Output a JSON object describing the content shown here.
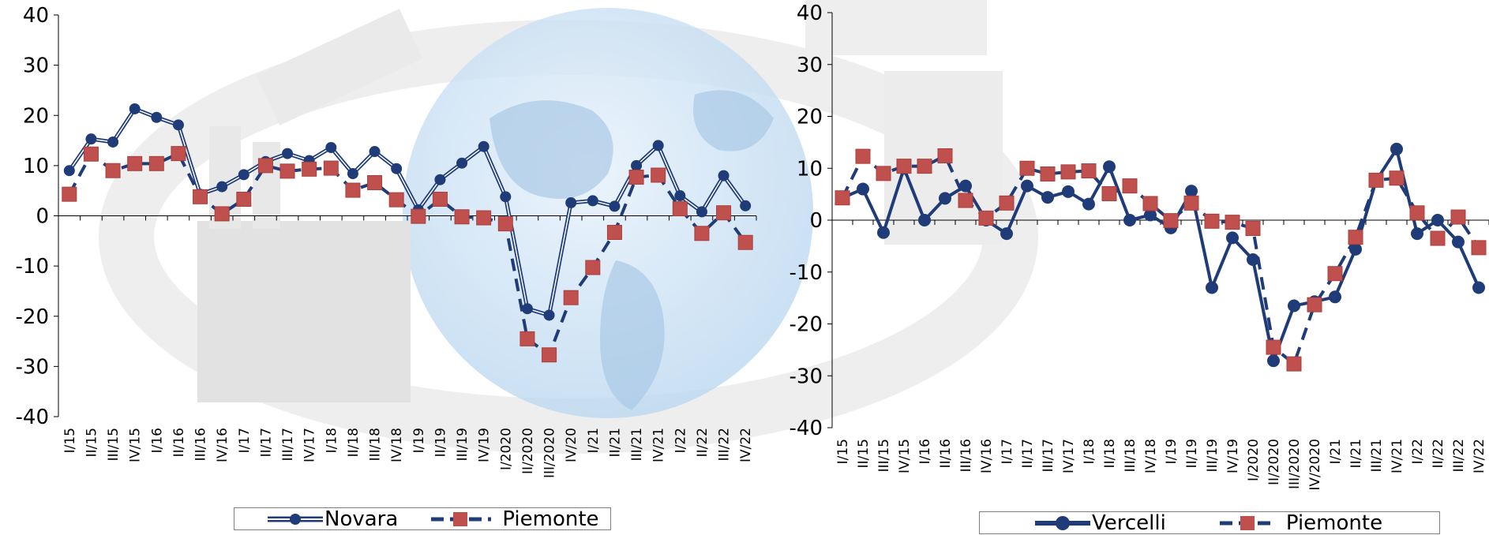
{
  "colors": {
    "line_navy": "#1f3c78",
    "line_navy_light": "#ffffff",
    "marker_red": "#c0504d",
    "marker_red_edge": "#a8403d",
    "axis": "#000000"
  },
  "chart_data": [
    {
      "type": "line",
      "ylim": [
        -40,
        40
      ],
      "yticks": [
        "40",
        "30",
        "20",
        "10",
        "0",
        "-10",
        "-20",
        "-30",
        "-40"
      ],
      "categories": [
        "I/15",
        "II/15",
        "III/15",
        "IV/15",
        "I/16",
        "II/16",
        "III/16",
        "IV/16",
        "I/17",
        "II/17",
        "III/17",
        "IV/17",
        "I/18",
        "II/18",
        "III/18",
        "IV/18",
        "I/19",
        "II/19",
        "III/19",
        "IV/19",
        "I/2020",
        "II/2020",
        "III/2020",
        "IV/20",
        "I/21",
        "II/21",
        "III/21",
        "IV/21",
        "I/22",
        "II/22",
        "III/22",
        "IV/22"
      ],
      "series": [
        {
          "name": "Novara",
          "style": "double-line-circle",
          "values": [
            9,
            15.3,
            14.7,
            21.3,
            19.6,
            18.1,
            4.3,
            5.8,
            8.2,
            10.8,
            12.4,
            11,
            13.6,
            8.4,
            12.8,
            9.4,
            1.2,
            7.2,
            10.5,
            13.8,
            3.8,
            -18.5,
            -19.8,
            2.6,
            3,
            1.9,
            10,
            14,
            4,
            0.8,
            8,
            2
          ],
          "legend": "Novara"
        },
        {
          "name": "Piemonte",
          "style": "dashed-square",
          "values": [
            4.3,
            12.3,
            9,
            10.4,
            10.4,
            12.4,
            3.8,
            0.4,
            3.3,
            10,
            8.9,
            9.3,
            9.5,
            5.1,
            6.6,
            3.2,
            -0.1,
            3.3,
            -0.2,
            -0.4,
            -1.6,
            -24.5,
            -27.7,
            -16.3,
            -10.3,
            -3.3,
            7.7,
            8.1,
            1.4,
            -3.5,
            0.6,
            -5.3
          ],
          "legend": "Piemonte"
        }
      ]
    },
    {
      "type": "line",
      "ylim": [
        -40,
        40
      ],
      "yticks": [
        "40",
        "30",
        "20",
        "10",
        "0",
        "-10",
        "-20",
        "-30",
        "-40"
      ],
      "categories": [
        "I/15",
        "II/15",
        "III/15",
        "IV/15",
        "I/16",
        "II/16",
        "III/16",
        "IV/16",
        "I/17",
        "II/17",
        "III/17",
        "IV/17",
        "I/18",
        "II/18",
        "III/18",
        "IV/18",
        "I/19",
        "II/19",
        "III/19",
        "IV/19",
        "I/2020",
        "II/2020",
        "III/2020",
        "IV/2020",
        "I/21",
        "II/21",
        "III/21",
        "IV/21",
        "I/22",
        "II/22",
        "III/22",
        "IV/22"
      ],
      "series": [
        {
          "name": "Vercelli",
          "style": "solid-circle",
          "values": [
            4.3,
            6,
            -2.4,
            10,
            0,
            4.2,
            6.6,
            0,
            -2.6,
            6.6,
            4.4,
            5.5,
            3.1,
            10.3,
            0,
            1,
            -1.5,
            5.6,
            -13,
            -3.4,
            -7.6,
            -27.1,
            -16.5,
            -15.7,
            -14.8,
            -5.6,
            7.6,
            13.7,
            -2.6,
            0,
            -4.2,
            -13
          ],
          "legend": "Vercelli"
        },
        {
          "name": "Piemonte",
          "style": "dashed-square",
          "values": [
            4.3,
            12.3,
            9,
            10.4,
            10.4,
            12.4,
            3.8,
            0.4,
            3.3,
            10,
            8.9,
            9.3,
            9.5,
            5.1,
            6.6,
            3.2,
            -0.1,
            3.3,
            -0.2,
            -0.4,
            -1.6,
            -24.5,
            -27.7,
            -16.3,
            -10.3,
            -3.3,
            7.7,
            8.1,
            1.4,
            -3.5,
            0.6,
            -5.3
          ],
          "legend": "Piemonte"
        }
      ]
    }
  ]
}
